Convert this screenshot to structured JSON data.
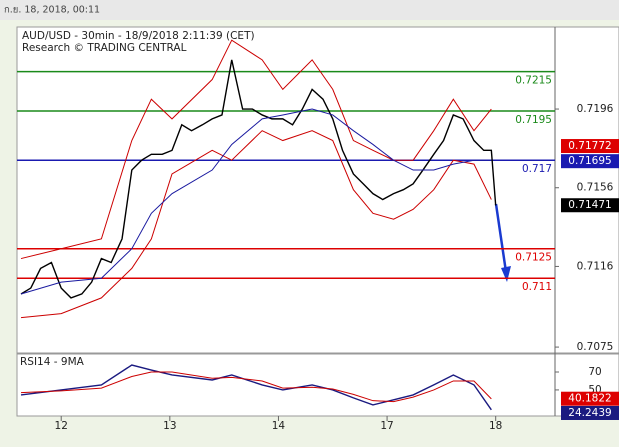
{
  "header": "ก.ย. 18, 2018, 00:11",
  "chart_data": [
    {
      "type": "line",
      "title": "AUD/USD - 30min - 18/9/2018 2:11:39 (CET)",
      "subtitle": "Research © TRADING CENTRAL",
      "xlim": [
        0.593,
        5.546
      ],
      "xticks": [
        {
          "value": 1,
          "label": "12"
        },
        {
          "value": 2,
          "label": "13"
        },
        {
          "value": 3,
          "label": "14"
        },
        {
          "value": 4,
          "label": "17"
        },
        {
          "value": 5,
          "label": "18"
        }
      ],
      "ylim": [
        0.70725,
        0.72372
      ],
      "yticks": [
        0.7196,
        0.7156,
        0.7116,
        0.7075
      ],
      "series": [
        {
          "color": "#000000",
          "x": [
            0.63,
            0.72,
            0.81,
            0.91,
            1.0,
            1.09,
            1.19,
            1.28,
            1.37,
            1.46,
            1.56,
            1.65,
            1.74,
            1.83,
            1.93,
            2.02,
            2.11,
            2.2,
            2.3,
            2.39,
            2.48,
            2.57,
            2.67,
            2.76,
            2.85,
            2.94,
            3.04,
            3.13,
            3.22,
            3.31,
            3.41,
            3.5,
            3.59,
            3.69,
            3.78,
            3.87,
            3.96,
            4.06,
            4.15,
            4.24,
            4.33,
            4.43,
            4.52,
            4.61,
            4.7,
            4.8,
            4.89,
            4.96,
            5.0
          ],
          "values": [
            0.7102,
            0.7105,
            0.7115,
            0.7118,
            0.7105,
            0.71,
            0.7102,
            0.7108,
            0.712,
            0.7118,
            0.713,
            0.7165,
            0.717,
            0.7173,
            0.7173,
            0.7175,
            0.7188,
            0.7185,
            0.7188,
            0.7191,
            0.7193,
            0.7221,
            0.7196,
            0.7196,
            0.7193,
            0.7191,
            0.7191,
            0.7188,
            0.7196,
            0.7206,
            0.7201,
            0.7191,
            0.7175,
            0.7163,
            0.7158,
            0.7153,
            0.715,
            0.7153,
            0.7155,
            0.7158,
            0.7165,
            0.7173,
            0.718,
            0.7193,
            0.7191,
            0.718,
            0.7175,
            0.7175,
            0.7147
          ]
        },
        {
          "color": "#cc0000",
          "x": [
            0.63,
            1.0,
            1.37,
            1.65,
            1.83,
            2.02,
            2.39,
            2.57,
            2.85,
            3.04,
            3.31,
            3.5,
            3.69,
            3.87,
            4.06,
            4.24,
            4.43,
            4.61,
            4.8,
            4.96
          ],
          "values": [
            0.712,
            0.7125,
            0.713,
            0.718,
            0.7201,
            0.7191,
            0.7211,
            0.7231,
            0.7221,
            0.7206,
            0.7221,
            0.7206,
            0.718,
            0.7175,
            0.717,
            0.717,
            0.7185,
            0.7201,
            0.7185,
            0.7196
          ]
        },
        {
          "color": "#cc0000",
          "x": [
            0.63,
            1.0,
            1.37,
            1.65,
            1.83,
            2.02,
            2.39,
            2.57,
            2.85,
            3.04,
            3.31,
            3.5,
            3.69,
            3.87,
            4.06,
            4.24,
            4.43,
            4.61,
            4.8,
            4.96
          ],
          "values": [
            0.709,
            0.7092,
            0.71,
            0.7115,
            0.713,
            0.7163,
            0.7175,
            0.717,
            0.7185,
            0.718,
            0.7185,
            0.718,
            0.7155,
            0.7143,
            0.714,
            0.7145,
            0.7155,
            0.717,
            0.7168,
            0.715
          ]
        },
        {
          "color": "#1a1aa0",
          "x": [
            0.63,
            1.0,
            1.37,
            1.65,
            1.83,
            2.02,
            2.39,
            2.57,
            2.85,
            3.04,
            3.31,
            3.5,
            3.69,
            3.87,
            4.06,
            4.24,
            4.43,
            4.61,
            4.8,
            4.96
          ],
          "values": [
            0.7102,
            0.7108,
            0.711,
            0.7125,
            0.7143,
            0.7153,
            0.7165,
            0.7178,
            0.7191,
            0.7193,
            0.7196,
            0.7193,
            0.7185,
            0.7178,
            0.717,
            0.7165,
            0.7165,
            0.7168,
            0.717,
            0.717
          ]
        }
      ],
      "levels": [
        {
          "value": 0.7215,
          "color": "#1a8a1a"
        },
        {
          "value": 0.7195,
          "color": "#1a8a1a"
        },
        {
          "value": 0.717,
          "color": "#1a1ab0"
        },
        {
          "value": 0.7125,
          "color": "#dd0000"
        },
        {
          "value": 0.711,
          "color": "#dd0000"
        }
      ],
      "markers": [
        {
          "value": 0.71772,
          "color": "#dd0000"
        },
        {
          "value": 0.71695,
          "color": "#1a1ab0"
        },
        {
          "value": 0.71471,
          "color": "#000000"
        }
      ]
    },
    {
      "type": "line",
      "title": "RSI14 - 9MA",
      "ylim": [
        22,
        89
      ],
      "yticks": [
        70,
        50
      ],
      "series": [
        {
          "color": "#1a1a80",
          "x": [
            0.63,
            1.0,
            1.37,
            1.65,
            1.83,
            2.02,
            2.39,
            2.57,
            2.85,
            3.04,
            3.31,
            3.5,
            3.69,
            3.87,
            4.06,
            4.24,
            4.43,
            4.61,
            4.8,
            4.96
          ],
          "values": [
            44.4,
            50,
            55.6,
            77.8,
            72.2,
            66.7,
            61.1,
            66.7,
            55.6,
            50,
            55.6,
            50,
            41.1,
            33.3,
            38.9,
            44.4,
            55.6,
            66.7,
            55.6,
            27.8
          ]
        },
        {
          "color": "#cc0000",
          "x": [
            0.63,
            1.0,
            1.37,
            1.65,
            1.83,
            2.02,
            2.39,
            2.57,
            2.85,
            3.04,
            3.31,
            3.5,
            3.69,
            3.87,
            4.06,
            4.24,
            4.43,
            4.61,
            4.8,
            4.96
          ],
          "values": [
            47,
            49,
            52,
            65,
            70,
            70,
            63,
            64,
            60,
            52,
            53,
            51,
            45,
            38,
            37,
            42,
            50,
            60,
            60,
            40
          ]
        }
      ],
      "markers": [
        {
          "value": 40.1822,
          "color": "#dd0000"
        },
        {
          "value": 24.2439,
          "color": "#1a1a80"
        }
      ]
    }
  ]
}
